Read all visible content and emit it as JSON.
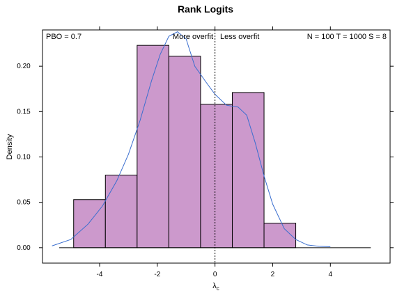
{
  "chart_data": {
    "type": "bar",
    "title": "Rank Logits",
    "xlabel": "λ",
    "xlabel_sub": "c",
    "ylabel": "Density",
    "xlim": [
      -5.98,
      6.07
    ],
    "ylim": [
      -0.017,
      0.24
    ],
    "x_ticks": [
      -4,
      -2,
      0,
      2,
      4
    ],
    "x_tick_labels": [
      "-4",
      "-2",
      "0",
      "2",
      "4"
    ],
    "y_ticks": [
      0,
      0.05,
      0.1,
      0.15,
      0.2
    ],
    "y_tick_labels": [
      "0.00",
      "0.05",
      "0.10",
      "0.15",
      "0.20"
    ],
    "bins": [
      {
        "x0": -4.9,
        "x1": -3.8,
        "density": 0.053
      },
      {
        "x0": -3.8,
        "x1": -2.7,
        "density": 0.08
      },
      {
        "x0": -2.7,
        "x1": -1.6,
        "density": 0.223
      },
      {
        "x0": -1.6,
        "x1": -0.5,
        "density": 0.211
      },
      {
        "x0": -0.5,
        "x1": 0.6,
        "density": 0.158
      },
      {
        "x0": 0.6,
        "x1": 1.7,
        "density": 0.171
      },
      {
        "x0": 1.7,
        "x1": 2.8,
        "density": 0.027
      }
    ],
    "baseline_range": [
      -5.4,
      5.4
    ],
    "density_curve": {
      "x": [
        -5.65,
        -5.0,
        -4.4,
        -3.9,
        -3.4,
        -3.0,
        -2.6,
        -2.2,
        -1.9,
        -1.6,
        -1.3,
        -1.0,
        -0.7,
        -0.3,
        0.0,
        0.4,
        0.8,
        1.1,
        1.4,
        1.7,
        2.0,
        2.4,
        2.8,
        3.2,
        3.6,
        4.0
      ],
      "y": [
        0.002,
        0.009,
        0.026,
        0.046,
        0.074,
        0.103,
        0.14,
        0.184,
        0.213,
        0.233,
        0.238,
        0.23,
        0.2,
        0.182,
        0.169,
        0.157,
        0.155,
        0.146,
        0.115,
        0.079,
        0.048,
        0.021,
        0.009,
        0.003,
        0.0015,
        0.001
      ]
    },
    "reference_line_x": 0,
    "annotations": {
      "pbo": "PBO = 0.7",
      "more_overfit": "More overfit",
      "less_overfit": "Less overfit",
      "params": "N = 100  T = 1000  S = 8"
    },
    "colors": {
      "bar_fill": "#cc99cc",
      "bar_stroke": "#000000",
      "curve": "#3a6ecf"
    },
    "grid": false,
    "legend": "none"
  }
}
